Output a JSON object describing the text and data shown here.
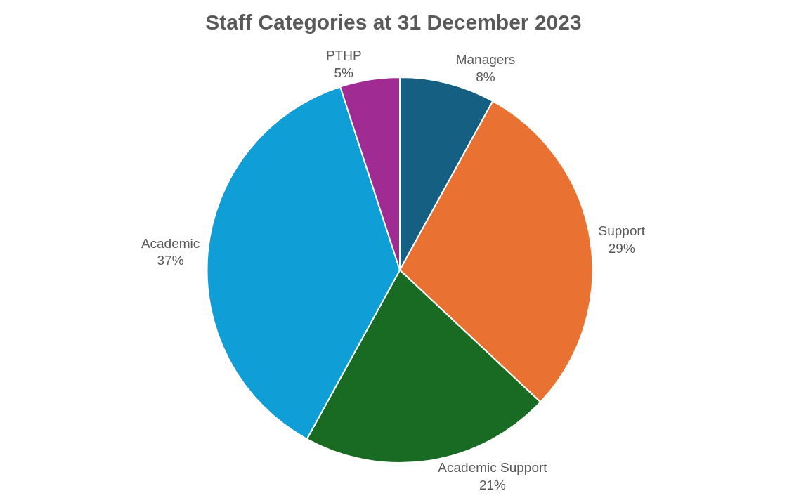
{
  "chart_data": {
    "type": "pie",
    "title": "Staff Categories at 31 December 2023",
    "categories": [
      "Managers",
      "Support",
      "Academic Support",
      "Academic",
      "PTHP"
    ],
    "values": [
      8,
      29,
      21,
      37,
      5
    ],
    "value_labels": [
      "8%",
      "29%",
      "21%",
      "37%",
      "5%"
    ],
    "colors": [
      "#156082",
      "#e97132",
      "#196b24",
      "#0f9ed5",
      "#a02b93"
    ],
    "legend": false
  }
}
